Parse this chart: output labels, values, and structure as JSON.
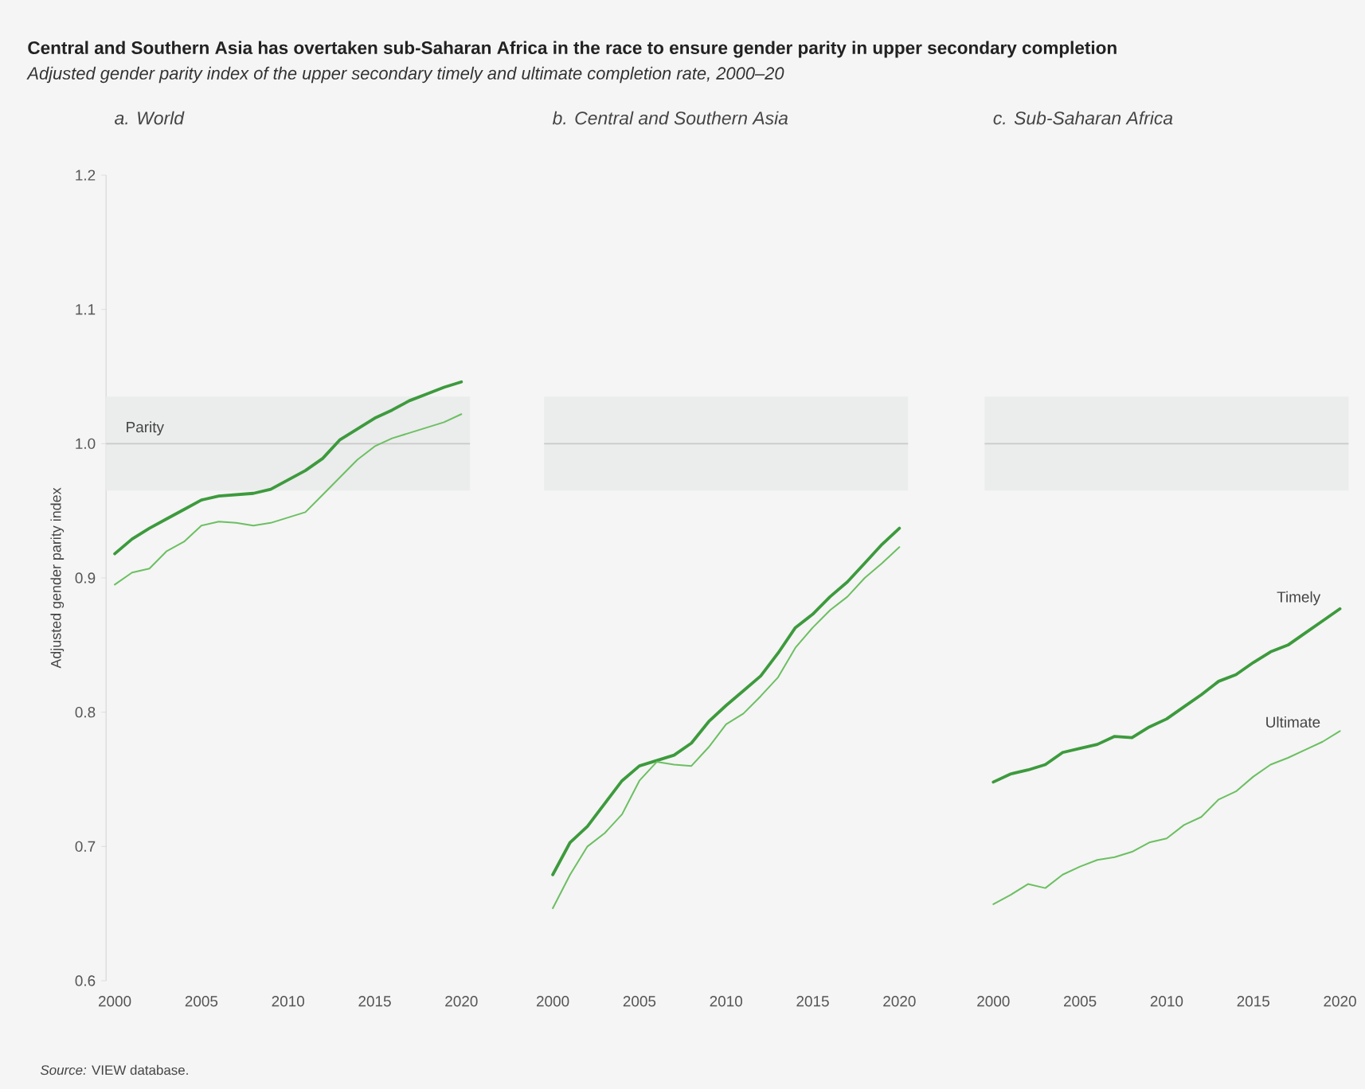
{
  "chart_data": [
    {
      "type": "other",
      "title": "Central and Southern Asia has overtaken sub-Saharan Africa in the race to ensure gender parity in upper secondary completion",
      "subtitle": "Adjusted gender parity index of the upper secondary timely and ultimate completion rate, 2000–20",
      "annotations": [
        "*Source:* VIEW database."
      ]
    },
    {
      "type": "line",
      "title": "a. World",
      "ylabel": "Adjusted gender parity index",
      "x": [
        2000,
        2001,
        2002,
        2003,
        2004,
        2005,
        2006,
        2007,
        2008,
        2009,
        2010,
        2011,
        2012,
        2013,
        2014,
        2015,
        2016,
        2017,
        2018,
        2019,
        2020
      ],
      "xlim": [
        1999.5,
        2020.5
      ],
      "xticks": [
        2000,
        2005,
        2010,
        2015,
        2020
      ],
      "ylim": [
        0.6,
        1.2
      ],
      "yticks": [
        0.6,
        0.7,
        0.8,
        0.9,
        {
          "value": 1.0,
          "label": "1.0"
        },
        1.1,
        1.2
      ],
      "series": [
        {
          "color": "#3d9a3d",
          "values": [
            0.918,
            0.929,
            0.937,
            0.944,
            0.951,
            0.958,
            0.961,
            0.962,
            0.963,
            0.966,
            0.973,
            0.98,
            0.989,
            1.003,
            1.011,
            1.019,
            1.025,
            1.032,
            1.037,
            1.042,
            1.046
          ]
        },
        {
          "color": "#6cbf62",
          "values": [
            0.895,
            0.904,
            0.907,
            0.92,
            0.927,
            0.939,
            0.942,
            0.941,
            0.939,
            0.941,
            0.945,
            0.949,
            0.962,
            0.975,
            0.988,
            0.998,
            1.004,
            1.008,
            1.012,
            1.016,
            1.022
          ]
        }
      ],
      "ref_lines": [
        {
          "axis": "y",
          "value": 1.0,
          "label": "Parity",
          "color": "#c9c9c9"
        }
      ],
      "bands": [
        {
          "axis": "y",
          "from": 0.965,
          "to": 1.035,
          "color": "#ebecec"
        }
      ]
    },
    {
      "type": "line",
      "title": "b. Central and Southern Asia",
      "tick_labels": "x",
      "x": [
        2000,
        2001,
        2002,
        2003,
        2004,
        2005,
        2006,
        2007,
        2008,
        2009,
        2010,
        2011,
        2012,
        2013,
        2014,
        2015,
        2016,
        2017,
        2018,
        2019,
        2020
      ],
      "xlim": [
        1999.5,
        2020.5
      ],
      "xticks": [
        2000,
        2005,
        2010,
        2015,
        2020
      ],
      "ylim": [
        0.6,
        1.2
      ],
      "series": [
        {
          "color": "#3d9a3d",
          "values": [
            0.679,
            0.703,
            0.715,
            0.732,
            0.749,
            0.76,
            0.764,
            0.768,
            0.777,
            0.793,
            0.805,
            0.816,
            0.827,
            0.844,
            0.863,
            0.873,
            0.886,
            0.897,
            0.911,
            0.925,
            0.937
          ]
        },
        {
          "color": "#6cbf62",
          "values": [
            0.654,
            0.679,
            0.7,
            0.71,
            0.724,
            0.749,
            0.763,
            0.761,
            0.76,
            0.774,
            0.791,
            0.799,
            0.812,
            0.826,
            0.848,
            0.863,
            0.876,
            0.886,
            0.9,
            0.911,
            0.923
          ]
        }
      ],
      "ref_lines": [
        {
          "axis": "y",
          "value": 1.0,
          "color": "#c9c9c9"
        }
      ],
      "bands": [
        {
          "axis": "y",
          "from": 0.965,
          "to": 1.035,
          "color": "#ebecec"
        }
      ]
    },
    {
      "type": "line",
      "title": "c. Sub-Saharan Africa",
      "tick_labels": "x",
      "x": [
        2000,
        2001,
        2002,
        2003,
        2004,
        2005,
        2006,
        2007,
        2008,
        2009,
        2010,
        2011,
        2012,
        2013,
        2014,
        2015,
        2016,
        2017,
        2018,
        2019,
        2020
      ],
      "xlim": [
        1999.5,
        2020.5
      ],
      "xticks": [
        2000,
        2005,
        2010,
        2015,
        2020
      ],
      "ylim": [
        0.6,
        1.2
      ],
      "series": [
        {
          "name": "Timely",
          "color": "#3d9a3d",
          "values": [
            0.748,
            0.754,
            0.757,
            0.761,
            0.77,
            0.773,
            0.776,
            0.782,
            0.781,
            0.789,
            0.795,
            0.804,
            0.813,
            0.823,
            0.828,
            0.837,
            0.845,
            0.85,
            0.859,
            0.868,
            0.877
          ]
        },
        {
          "name": "Ultimate",
          "color": "#6cbf62",
          "values": [
            0.657,
            0.664,
            0.672,
            0.669,
            0.679,
            0.685,
            0.69,
            0.692,
            0.696,
            0.703,
            0.706,
            0.716,
            0.722,
            0.735,
            0.741,
            0.752,
            0.761,
            0.766,
            0.772,
            0.778,
            0.786
          ]
        }
      ],
      "ref_lines": [
        {
          "axis": "y",
          "value": 1.0,
          "color": "#c9c9c9"
        }
      ],
      "bands": [
        {
          "axis": "y",
          "from": 0.965,
          "to": 1.035,
          "color": "#ebecec"
        }
      ]
    }
  ]
}
